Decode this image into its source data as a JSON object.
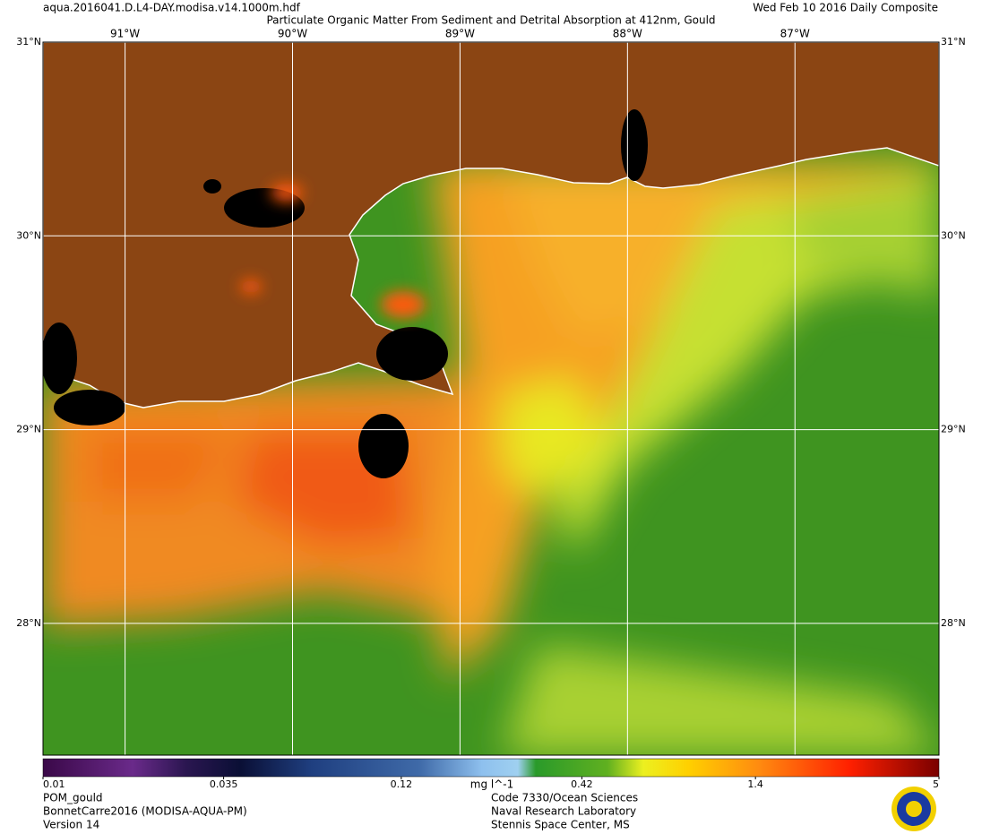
{
  "header": {
    "file": "aqua.2016041.D.L4-DAY.modisa.v14.1000m.hdf",
    "title": "Particulate Organic Matter From Sediment and Detrital Absorption at 412nm, Gould",
    "date": "Wed Feb 10 2016 Daily Composite"
  },
  "map": {
    "lonlim": [
      -91.49,
      -86.14
    ],
    "latlim": [
      27.32,
      31
    ],
    "lons": [
      {
        "value": -91,
        "label": "91°W"
      },
      {
        "value": -90,
        "label": "90°W"
      },
      {
        "value": -89,
        "label": "89°W"
      },
      {
        "value": -88,
        "label": "88°W"
      },
      {
        "value": -87,
        "label": "87°W"
      }
    ],
    "lats": [
      {
        "value": 31,
        "label": "31°N"
      },
      {
        "value": 30,
        "label": "30°N"
      },
      {
        "value": 29,
        "label": "29°N"
      },
      {
        "value": 28,
        "label": "28°N"
      }
    ]
  },
  "colorbar": {
    "range": [
      0.01,
      5
    ],
    "log": true,
    "ticks": [
      0.01,
      0.035,
      0.12,
      0.42,
      1.4,
      5
    ],
    "unit": "mg l^-1"
  },
  "footer": {
    "left": [
      "POM_gould",
      "BonnetCarre2016 (MODISA-AQUA-PM)",
      "Version 14"
    ],
    "center": [
      "Code 7330/Ocean Sciences",
      "Naval Research Laboratory",
      "Stennis Space Center, MS"
    ]
  }
}
